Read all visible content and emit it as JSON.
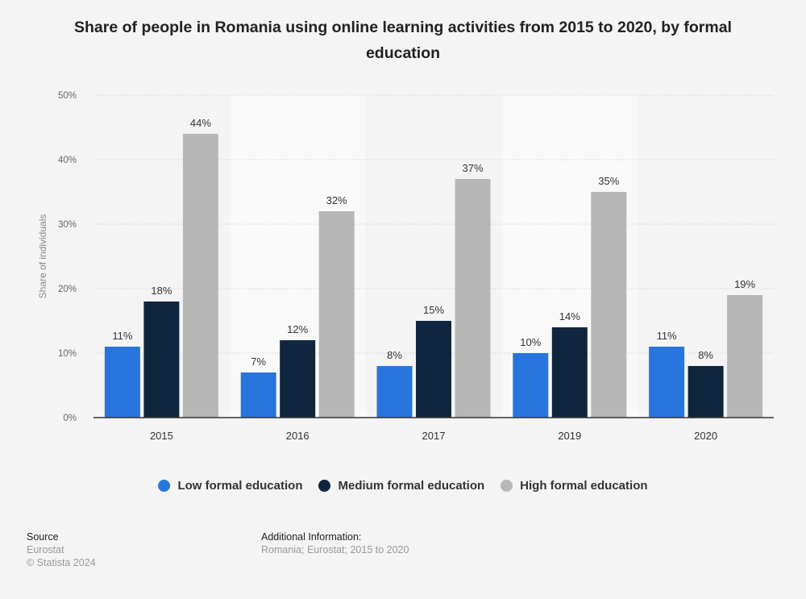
{
  "chart_data": {
    "type": "bar",
    "title": "Share of people in Romania using online learning activities from 2015 to 2020, by formal education",
    "xlabel": "",
    "ylabel": "Share of individuals",
    "ylim": [
      0,
      50
    ],
    "yticks": [
      0,
      10,
      20,
      30,
      40,
      50
    ],
    "ytick_labels": [
      "0%",
      "10%",
      "20%",
      "30%",
      "40%",
      "50%"
    ],
    "categories": [
      "2015",
      "2016",
      "2017",
      "2019",
      "2020"
    ],
    "series": [
      {
        "name": "Low formal education",
        "color": "#2876dd",
        "values": [
          11,
          7,
          8,
          10,
          11
        ]
      },
      {
        "name": "Medium formal education",
        "color": "#10263f",
        "values": [
          18,
          12,
          15,
          14,
          8
        ]
      },
      {
        "name": "High formal education",
        "color": "#b7b7b7",
        "values": [
          44,
          32,
          37,
          35,
          19
        ]
      }
    ],
    "value_suffix": "%",
    "grid": true,
    "legend_position": "bottom"
  },
  "footer": {
    "source_label": "Source",
    "source": "Eurostat",
    "copyright": "© Statista 2024",
    "additional_label": "Additional Information:",
    "additional": "Romania; Eurostat; 2015 to 2020"
  }
}
